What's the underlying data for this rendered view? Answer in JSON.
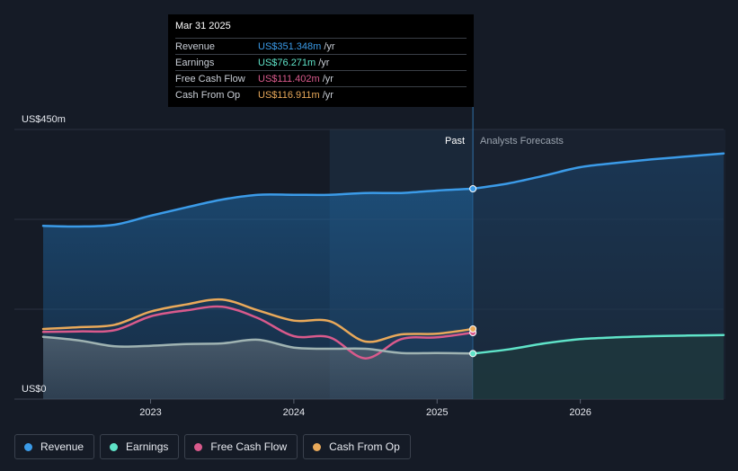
{
  "tooltip": {
    "date": "Mar 31 2025",
    "rows": [
      {
        "label": "Revenue",
        "value": "US$351.348m",
        "unit": "/yr",
        "color": "#3b9be8"
      },
      {
        "label": "Earnings",
        "value": "US$76.271m",
        "unit": "/yr",
        "color": "#5fe3c8"
      },
      {
        "label": "Free Cash Flow",
        "value": "US$111.402m",
        "unit": "/yr",
        "color": "#d95a8c"
      },
      {
        "label": "Cash From Op",
        "value": "US$116.911m",
        "unit": "/yr",
        "color": "#e9a95a"
      }
    ]
  },
  "regions": {
    "past": "Past",
    "forecast": "Analysts Forecasts"
  },
  "legend": [
    {
      "label": "Revenue",
      "color": "#3b9be8"
    },
    {
      "label": "Earnings",
      "color": "#5fe3c8"
    },
    {
      "label": "Free Cash Flow",
      "color": "#d95a8c"
    },
    {
      "label": "Cash From Op",
      "color": "#e9a95a"
    }
  ],
  "chart_data": {
    "type": "line",
    "y_top_label": "US$450m",
    "y_bottom_label": "US$0",
    "ylim": [
      0,
      450
    ],
    "xlim": [
      2022.25,
      2027.0
    ],
    "x_ticks": [
      {
        "value": 2023.0,
        "label": "2023"
      },
      {
        "value": 2024.0,
        "label": "2024"
      },
      {
        "value": 2025.0,
        "label": "2025"
      },
      {
        "value": 2026.0,
        "label": "2026"
      }
    ],
    "past_end": 2025.25,
    "highlight_start": 2024.25,
    "series": [
      {
        "name": "Revenue",
        "color": "#3b9be8",
        "past": [
          [
            2022.25,
            289
          ],
          [
            2022.5,
            288
          ],
          [
            2022.75,
            291
          ],
          [
            2023.0,
            306
          ],
          [
            2023.25,
            320
          ],
          [
            2023.5,
            333
          ],
          [
            2023.75,
            341
          ],
          [
            2024.0,
            341
          ],
          [
            2024.25,
            341
          ],
          [
            2024.5,
            344
          ],
          [
            2024.75,
            344
          ],
          [
            2025.0,
            348
          ],
          [
            2025.25,
            351
          ]
        ],
        "forecast": [
          [
            2025.25,
            351
          ],
          [
            2025.5,
            360
          ],
          [
            2025.75,
            373
          ],
          [
            2026.0,
            387
          ],
          [
            2026.25,
            394
          ],
          [
            2026.5,
            400
          ],
          [
            2026.75,
            405
          ],
          [
            2027.0,
            410
          ]
        ]
      },
      {
        "name": "Earnings",
        "color": "#5fe3c8",
        "past": [
          [
            2022.25,
            104
          ],
          [
            2022.5,
            98
          ],
          [
            2022.75,
            88
          ],
          [
            2023.0,
            89
          ],
          [
            2023.25,
            92
          ],
          [
            2023.5,
            93
          ],
          [
            2023.75,
            99
          ],
          [
            2024.0,
            86
          ],
          [
            2024.25,
            84
          ],
          [
            2024.5,
            84
          ],
          [
            2024.75,
            77
          ],
          [
            2025.0,
            77
          ],
          [
            2025.25,
            76
          ]
        ],
        "forecast": [
          [
            2025.25,
            76
          ],
          [
            2025.5,
            83
          ],
          [
            2025.75,
            93
          ],
          [
            2026.0,
            100
          ],
          [
            2026.25,
            103
          ],
          [
            2026.5,
            105
          ],
          [
            2026.75,
            106
          ],
          [
            2027.0,
            107
          ]
        ]
      },
      {
        "name": "Free Cash Flow",
        "color": "#d95a8c",
        "past": [
          [
            2022.25,
            112
          ],
          [
            2022.5,
            113
          ],
          [
            2022.75,
            115
          ],
          [
            2023.0,
            138
          ],
          [
            2023.25,
            148
          ],
          [
            2023.5,
            154
          ],
          [
            2023.75,
            135
          ],
          [
            2024.0,
            105
          ],
          [
            2024.25,
            103
          ],
          [
            2024.5,
            68
          ],
          [
            2024.75,
            100
          ],
          [
            2025.0,
            103
          ],
          [
            2025.25,
            111
          ]
        ],
        "forecast": []
      },
      {
        "name": "Cash From Op",
        "color": "#e9a95a",
        "past": [
          [
            2022.25,
            117
          ],
          [
            2022.5,
            120
          ],
          [
            2022.75,
            124
          ],
          [
            2023.0,
            146
          ],
          [
            2023.25,
            158
          ],
          [
            2023.5,
            166
          ],
          [
            2023.75,
            148
          ],
          [
            2024.0,
            131
          ],
          [
            2024.25,
            130
          ],
          [
            2024.5,
            96
          ],
          [
            2024.75,
            108
          ],
          [
            2025.0,
            109
          ],
          [
            2025.25,
            117
          ]
        ],
        "forecast": []
      }
    ]
  }
}
